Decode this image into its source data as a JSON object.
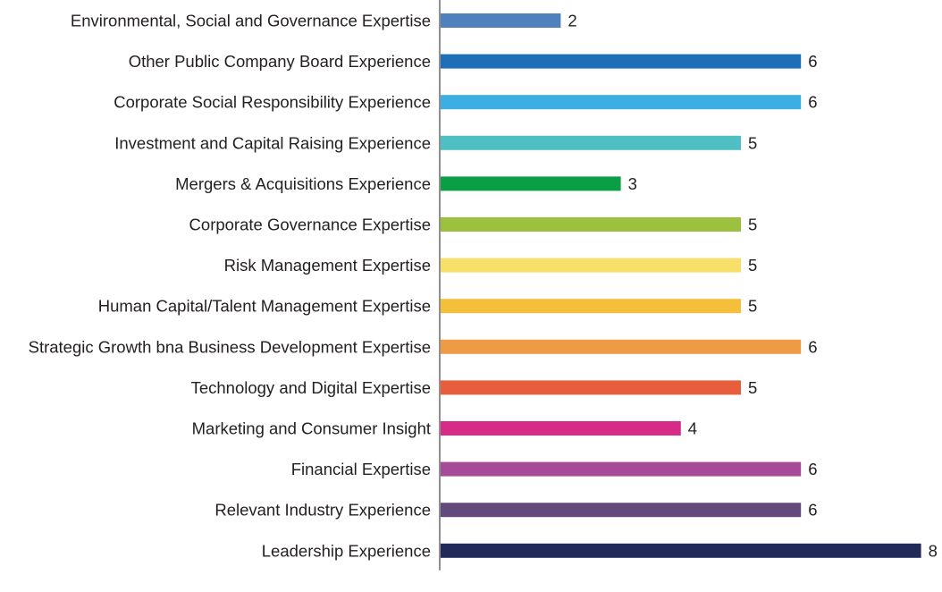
{
  "chart_data": {
    "type": "bar",
    "orientation": "horizontal",
    "title": "",
    "xlabel": "",
    "ylabel": "",
    "xlim": [
      0,
      8
    ],
    "grid": false,
    "categories": [
      "Environmental, Social and Governance Expertise",
      "Other Public Company Board Experience",
      "Corporate Social Responsibility Experience",
      "Investment and Capital Raising Experience",
      "Mergers & Acquisitions Experience",
      "Corporate Governance Expertise",
      "Risk Management Expertise",
      "Human Capital/Talent Management Expertise",
      "Strategic Growth bna Business Development Expertise",
      "Technology and Digital Expertise",
      "Marketing and Consumer Insight",
      "Financial Expertise",
      "Relevant Industry Experience",
      "Leadership Experience"
    ],
    "values": [
      2,
      6,
      6,
      5,
      3,
      5,
      5,
      5,
      6,
      5,
      4,
      6,
      6,
      8
    ],
    "colors": [
      "#4f81bd",
      "#1f6fb7",
      "#3daee3",
      "#4fbfc6",
      "#0a9e45",
      "#9bc13f",
      "#f8df6a",
      "#f4bf3b",
      "#ef9a45",
      "#e85d3c",
      "#d62b87",
      "#a64b97",
      "#644a7c",
      "#222a5a"
    ]
  }
}
